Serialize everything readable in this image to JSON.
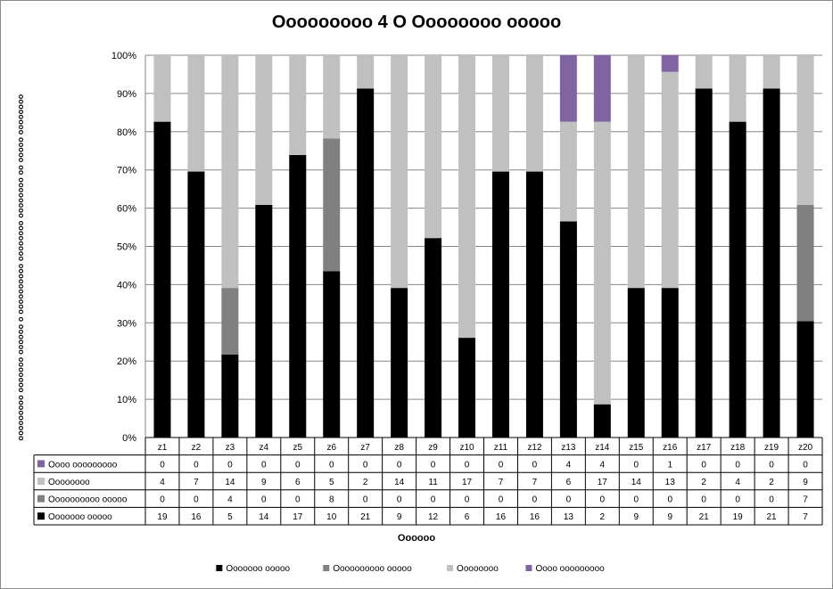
{
  "chart_data": {
    "type": "bar",
    "stacked": "percent",
    "title": "Ooooooooo 4 O Oooooooo ooooo",
    "ylabel": "ooooooooo ooooooo oooooo o oooooooooo oooooooo oooooooo oo ooooo oooooooo",
    "xlabel": "Oooooo",
    "ylim": [
      0,
      100
    ],
    "yticks": [
      "0%",
      "10%",
      "20%",
      "30%",
      "40%",
      "50%",
      "60%",
      "70%",
      "80%",
      "90%",
      "100%"
    ],
    "grid": true,
    "legend_position": "bottom",
    "data_table": true,
    "categories": [
      "z1",
      "z2",
      "z3",
      "z4",
      "z5",
      "z6",
      "z7",
      "z8",
      "z9",
      "z10",
      "z11",
      "z12",
      "z13",
      "z14",
      "z15",
      "z16",
      "z17",
      "z18",
      "z19",
      "z20"
    ],
    "series": [
      {
        "name": "Ooooooo ooooo",
        "color": "#000000",
        "values": [
          19,
          16,
          5,
          14,
          17,
          10,
          21,
          9,
          12,
          6,
          16,
          16,
          13,
          2,
          9,
          9,
          21,
          19,
          21,
          7
        ]
      },
      {
        "name": "Oooooooooo ooooo",
        "color": "#808080",
        "values": [
          0,
          0,
          4,
          0,
          0,
          8,
          0,
          0,
          0,
          0,
          0,
          0,
          0,
          0,
          0,
          0,
          0,
          0,
          0,
          7
        ]
      },
      {
        "name": "Oooooooo",
        "color": "#c0c0c0",
        "values": [
          4,
          7,
          14,
          9,
          6,
          5,
          2,
          14,
          11,
          17,
          7,
          7,
          6,
          17,
          14,
          13,
          2,
          4,
          2,
          9
        ]
      },
      {
        "name": "Oooo ooooooooo",
        "color": "#8064a2",
        "values": [
          0,
          0,
          0,
          0,
          0,
          0,
          0,
          0,
          0,
          0,
          0,
          0,
          4,
          4,
          0,
          1,
          0,
          0,
          0,
          0
        ]
      }
    ]
  }
}
